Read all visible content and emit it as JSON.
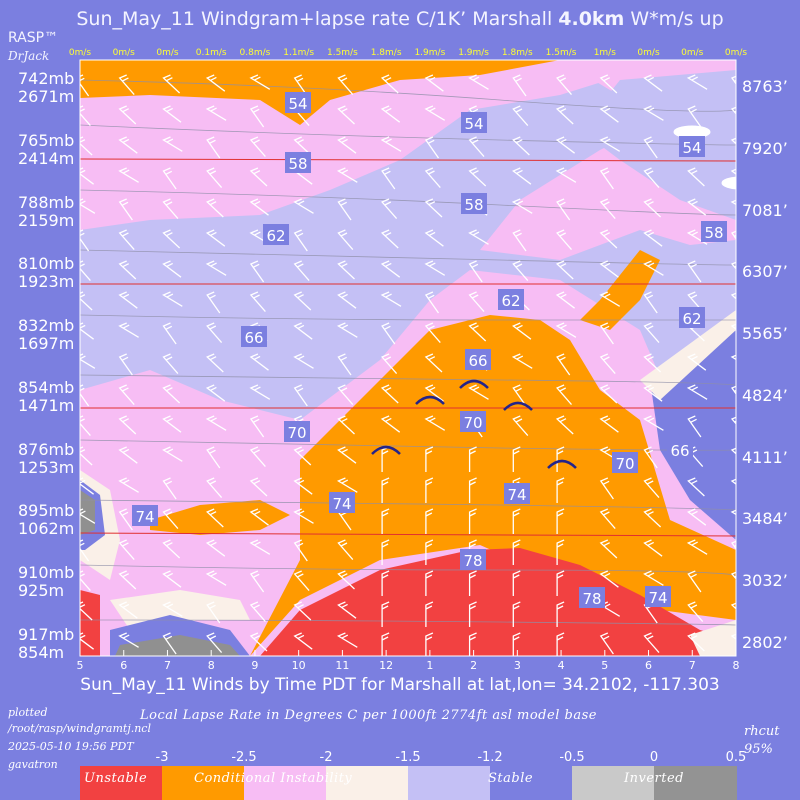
{
  "header": {
    "title_main": "Sun_May_11 Windgram+lapse rate C/1K’  Marshall ",
    "title_bold": "4.0km",
    "title_tail": "  W*m/s up",
    "brand": "RASP™",
    "brand_sub": "DrJack"
  },
  "chart_data": {
    "type": "heatmap",
    "x_axis_title": "Sun_May_11 Winds by Time PDT for Marshall at lat,lon= 34.2102, -117.303",
    "x_ticks": [
      "5",
      "6",
      "7",
      "8",
      "9",
      "10",
      "11",
      "12",
      "1",
      "2",
      "3",
      "4",
      "5",
      "6",
      "7",
      "8"
    ],
    "wstar_labels": [
      "0m/s",
      "0m/s",
      "0m/s",
      "0.1m/s",
      "0.8m/s",
      "1.1m/s",
      "1.5m/s",
      "1.8m/s",
      "1.9m/s",
      "1.9m/s",
      "1.8m/s",
      "1.5m/s",
      "1m/s",
      "0m/s",
      "0m/s",
      "0m/s"
    ],
    "left_axis": [
      {
        "mb": "742mb",
        "m": "2671m"
      },
      {
        "mb": "765mb",
        "m": "2414m"
      },
      {
        "mb": "788mb",
        "m": "2159m"
      },
      {
        "mb": "810mb",
        "m": "1923m"
      },
      {
        "mb": "832mb",
        "m": "1697m"
      },
      {
        "mb": "854mb",
        "m": "1471m"
      },
      {
        "mb": "876mb",
        "m": "1253m"
      },
      {
        "mb": "895mb",
        "m": "1062m"
      },
      {
        "mb": "910mb",
        "m": "925m"
      },
      {
        "mb": "917mb",
        "m": "854m"
      }
    ],
    "right_axis": [
      "8763’",
      "7920’",
      "7081’",
      "6307’",
      "5565’",
      "4824’",
      "4111’",
      "3484’",
      "3032’",
      "2802’"
    ],
    "contour_labels": [
      {
        "text": "54"
      },
      {
        "text": "54"
      },
      {
        "text": "54"
      },
      {
        "text": "58"
      },
      {
        "text": "58"
      },
      {
        "text": "58"
      },
      {
        "text": "62"
      },
      {
        "text": "62"
      },
      {
        "text": "62"
      },
      {
        "text": "66"
      },
      {
        "text": "66"
      },
      {
        "text": "66"
      },
      {
        "text": "70"
      },
      {
        "text": "70"
      },
      {
        "text": "70"
      },
      {
        "text": "74"
      },
      {
        "text": "74"
      },
      {
        "text": "74"
      },
      {
        "text": "74"
      },
      {
        "text": "78"
      },
      {
        "text": "78"
      }
    ],
    "legend": {
      "ticks": [
        "-3",
        "-2.5",
        "-2",
        "-1.5",
        "-1.2",
        "-0.5",
        "0",
        "0.5"
      ],
      "categories": [
        "Unstable",
        "Conditional Instability",
        "Stable",
        "Inverted"
      ],
      "colors": [
        "#f24141",
        "#ff9a00",
        "#f7bdf4",
        "#faf0e8",
        "#c4c0f5",
        "#7b7fe0",
        "#c9c9c9",
        "#939393"
      ]
    },
    "colors": {
      "unstable": "#f24141",
      "conditional": "#ff9a00",
      "pink": "#f7bdf4",
      "lavender": "#c4c0f5",
      "blue": "#7b7fe0",
      "cream": "#faf0e8",
      "grey": "#909090"
    }
  },
  "footer": {
    "subtitle": "Local Lapse Rate in Degrees C per 1000ft  2774ft asl model base",
    "plotted": "plotted",
    "path": "/root/rasp/windgramtj.ncl",
    "timestamp": "2025-05-10 19:56 PDT",
    "user": "gavatron",
    "rhcut": "rhcut",
    "rhcut_value": "95%"
  }
}
